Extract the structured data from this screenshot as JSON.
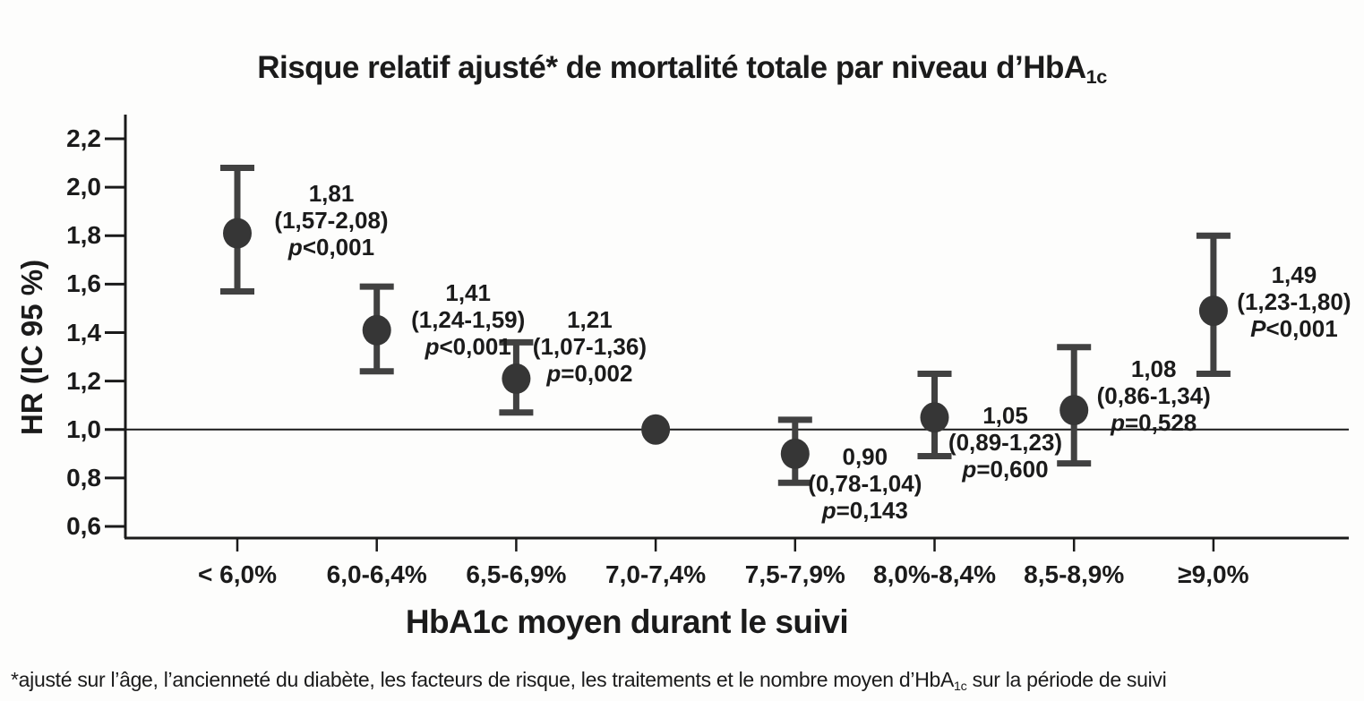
{
  "title": {
    "pre": "Risque relatif ajusté* de mortalité totale par niveau d’HbA",
    "sub": "1c"
  },
  "footnote": {
    "pre": "*ajusté sur l’âge, l’ancienneté du diabète, les facteurs de risque, les traitements et le nombre moyen d’HbA",
    "sub": "1c",
    "post": " sur la période de suivi"
  },
  "chart_data": {
    "type": "scatter",
    "subtype": "forest-plot-hr-with-ci",
    "title": "Risque relatif ajusté* de mortalité totale par niveau d'HbA1c",
    "xlabel": "HbA1c moyen durant le suivi",
    "ylabel": "HR (IC 95 %)",
    "ylim": [
      0.6,
      2.2
    ],
    "ytick_values": [
      0.6,
      0.8,
      1.0,
      1.2,
      1.4,
      1.6,
      1.8,
      2.0,
      2.2
    ],
    "ytick_labels": [
      "0,6",
      "0,8",
      "1,0",
      "1,2",
      "1,4",
      "1,6",
      "1,8",
      "2,0",
      "2,2"
    ],
    "reference_line_y": 1.0,
    "grid": false,
    "legend": null,
    "categories": [
      "< 6,0%",
      "6,0-6,4%",
      "6,5-6,9%",
      "7,0-7,4%",
      "7,5-7,9%",
      "8,0%-8,4%",
      "8,5-8,9%",
      "≥9,0%"
    ],
    "points": [
      {
        "category": "< 6,0%",
        "hr": 1.81,
        "ci_low": 1.57,
        "ci_high": 2.08,
        "label_hr": "1,81",
        "label_ci": "(1,57-2,08)",
        "p_letter": "p",
        "p_text": "<0,001",
        "reference": false
      },
      {
        "category": "6,0-6,4%",
        "hr": 1.41,
        "ci_low": 1.24,
        "ci_high": 1.59,
        "label_hr": "1,41",
        "label_ci": "(1,24-1,59)",
        "p_letter": "p",
        "p_text": "<0,001",
        "reference": false
      },
      {
        "category": "6,5-6,9%",
        "hr": 1.21,
        "ci_low": 1.07,
        "ci_high": 1.36,
        "label_hr": "1,21",
        "label_ci": "(1,07-1,36)",
        "p_letter": "p",
        "p_text": "=0,002",
        "reference": false
      },
      {
        "category": "7,0-7,4%",
        "hr": 1.0,
        "ci_low": null,
        "ci_high": null,
        "label_hr": null,
        "label_ci": null,
        "p_letter": null,
        "p_text": null,
        "reference": true
      },
      {
        "category": "7,5-7,9%",
        "hr": 0.9,
        "ci_low": 0.78,
        "ci_high": 1.04,
        "label_hr": "0,90",
        "label_ci": "(0,78-1,04)",
        "p_letter": "p",
        "p_text": "=0,143",
        "reference": false
      },
      {
        "category": "8,0%-8,4%",
        "hr": 1.05,
        "ci_low": 0.89,
        "ci_high": 1.23,
        "label_hr": "1,05",
        "label_ci": "(0,89-1,23)",
        "p_letter": "p",
        "p_text": "=0,600",
        "reference": false
      },
      {
        "category": "8,5-8,9%",
        "hr": 1.08,
        "ci_low": 0.86,
        "ci_high": 1.34,
        "label_hr": "1,08",
        "label_ci": "(0,86-1,34)",
        "p_letter": "p",
        "p_text": "=0,528",
        "reference": false
      },
      {
        "category": "≥9,0%",
        "hr": 1.49,
        "ci_low": 1.23,
        "ci_high": 1.8,
        "label_hr": "1,49",
        "label_ci": "(1,23-1,80)",
        "p_letter": "P",
        "p_text": "<0,001",
        "reference": false
      }
    ],
    "colors": {
      "marker": "#363636",
      "error_bar": "#414141",
      "axis": "#1a1a1a",
      "reference_line": "#1a1a1a",
      "text": "#1b1b1b",
      "background": "#fdfdfc"
    }
  }
}
